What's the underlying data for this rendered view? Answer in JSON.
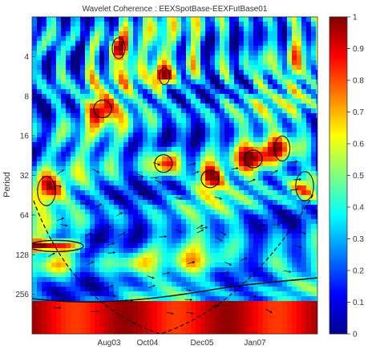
{
  "chart_data": {
    "type": "heatmap",
    "title": "Wavelet Coherence : EEXSpotBase-EEXFutBase01",
    "ylabel": "Period",
    "xlabel": "",
    "y_scale": "log2",
    "y_ticks": [
      4,
      8,
      16,
      32,
      64,
      128,
      256
    ],
    "ylim": [
      2,
      512
    ],
    "x_ticks": [
      "Aug03",
      "Oct04",
      "Dec05",
      "Jan07"
    ],
    "colorbar": {
      "min": 0,
      "max": 1,
      "ticks": [
        0,
        0.1,
        0.2,
        0.3,
        0.4,
        0.5,
        0.6,
        0.7,
        0.8,
        0.9,
        1
      ],
      "colormap": "jet"
    },
    "features": {
      "high_coherence_low_band_period": [
        200,
        512
      ],
      "high_coherence_left_band_period": [
        100,
        120
      ],
      "hotspots": [
        {
          "x": "Aug03",
          "period": 10
        },
        {
          "x": "Oct04",
          "period": 26
        },
        {
          "x": "Dec05",
          "period": 34
        },
        {
          "x": "Jan07",
          "period": 24
        }
      ]
    },
    "grid": false,
    "legend": "colorbar-right"
  }
}
